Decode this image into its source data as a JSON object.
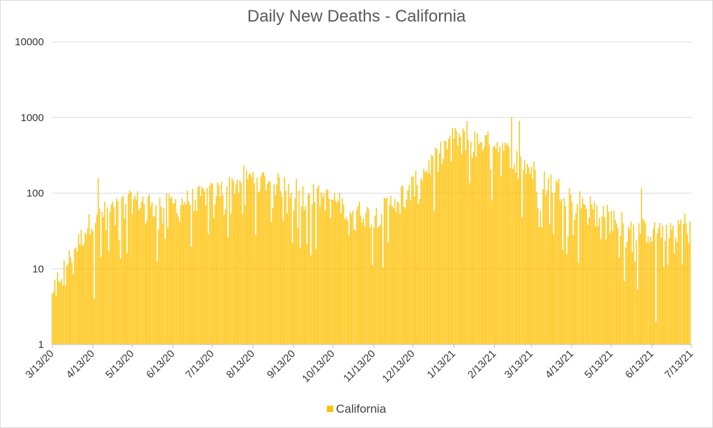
{
  "chart_data": {
    "type": "bar",
    "title": "Daily New Deaths - California",
    "xlabel": "",
    "ylabel": "",
    "y_scale": "log",
    "ylim": [
      1,
      10000
    ],
    "y_ticks": [
      "1",
      "10",
      "100",
      "1000",
      "10000"
    ],
    "x_range": [
      "3/13/20",
      "7/13/21"
    ],
    "x_tick_labels": [
      "3/13/20",
      "4/13/20",
      "5/13/20",
      "6/13/20",
      "7/13/20",
      "8/13/20",
      "9/13/20",
      "10/13/20",
      "11/13/20",
      "12/13/20",
      "1/13/21",
      "2/13/21",
      "3/13/21",
      "4/13/21",
      "5/13/21",
      "6/13/21",
      "7/13/21"
    ],
    "grid": true,
    "legend_position": "bottom",
    "bar_color": "#FFC000",
    "series": [
      {
        "name": "California",
        "period_levels": [
          {
            "from": "3/13/20",
            "to": "4/13/20",
            "start": 5,
            "end": 45
          },
          {
            "from": "4/13/20",
            "to": "5/13/20",
            "start": 45,
            "end": 75
          },
          {
            "from": "5/13/20",
            "to": "6/13/20",
            "start": 75,
            "end": 65
          },
          {
            "from": "6/13/20",
            "to": "7/13/20",
            "start": 65,
            "end": 95
          },
          {
            "from": "7/13/20",
            "to": "8/13/20",
            "start": 95,
            "end": 150
          },
          {
            "from": "8/13/20",
            "to": "9/13/20",
            "start": 150,
            "end": 110
          },
          {
            "from": "9/13/20",
            "to": "10/13/20",
            "start": 110,
            "end": 75
          },
          {
            "from": "10/13/20",
            "to": "11/13/20",
            "start": 75,
            "end": 45
          },
          {
            "from": "11/13/20",
            "to": "12/13/20",
            "start": 45,
            "end": 120
          },
          {
            "from": "12/13/20",
            "to": "1/13/21",
            "start": 120,
            "end": 520
          },
          {
            "from": "1/13/21",
            "to": "2/13/21",
            "start": 520,
            "end": 430
          },
          {
            "from": "2/13/21",
            "to": "3/13/21",
            "start": 430,
            "end": 190
          },
          {
            "from": "3/13/21",
            "to": "4/13/21",
            "start": 190,
            "end": 85
          },
          {
            "from": "4/13/21",
            "to": "5/13/21",
            "start": 85,
            "end": 45
          },
          {
            "from": "5/13/21",
            "to": "6/13/21",
            "start": 45,
            "end": 28
          },
          {
            "from": "6/13/21",
            "to": "7/13/21",
            "start": 28,
            "end": 40
          }
        ],
        "notable_values": [
          {
            "date": "3/14/20",
            "value": 5
          },
          {
            "date": "4/17/20",
            "value": 160
          },
          {
            "date": "4/14/20",
            "value": 4
          },
          {
            "date": "8/6/20",
            "value": 230
          },
          {
            "date": "1/23/21",
            "value": 900
          },
          {
            "date": "2/26/21",
            "value": 1000
          },
          {
            "date": "3/4/21",
            "value": 900
          },
          {
            "date": "6/5/21",
            "value": 115
          },
          {
            "date": "6/16/21",
            "value": 2
          }
        ]
      }
    ]
  },
  "legend": {
    "label": "California"
  }
}
